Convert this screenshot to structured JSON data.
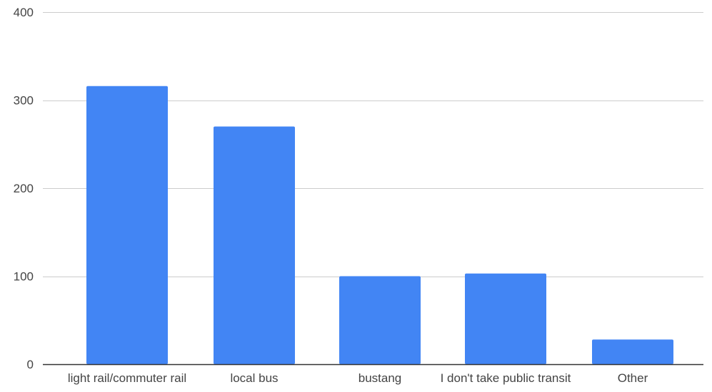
{
  "chart_data": {
    "type": "bar",
    "categories": [
      "light rail/commuter rail",
      "local bus",
      "bustang",
      "I don't take public transit",
      "Other"
    ],
    "values": [
      316,
      270,
      100,
      103,
      28
    ],
    "title": "",
    "xlabel": "",
    "ylabel": "",
    "ylim": [
      0,
      400
    ],
    "yticks": [
      0,
      100,
      200,
      300,
      400
    ],
    "grid": true,
    "legend": "none",
    "bar_color": "#4285f4",
    "grid_color": "#cccccc",
    "axis_color": "#333333",
    "label_color": "#444444"
  }
}
